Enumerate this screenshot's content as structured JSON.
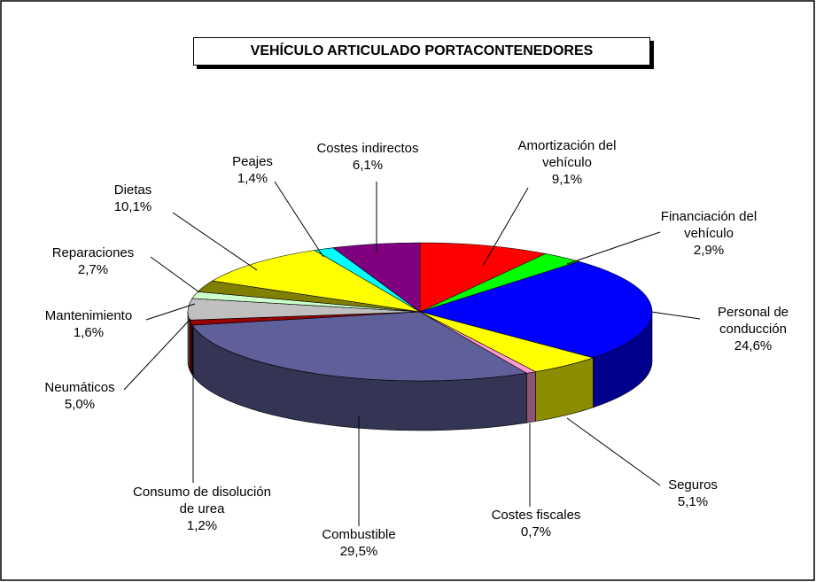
{
  "chart_data": {
    "type": "pie",
    "title": "VEHÍCULO ARTICULADO PORTACONTENEDORES",
    "categories": [
      "Amortización del vehículo",
      "Financiación del vehículo",
      "Personal de conducción",
      "Seguros",
      "Costes fiscales",
      "Combustible",
      "Consumo de disolución de urea",
      "Neumáticos",
      "Mantenimiento",
      "Reparaciones",
      "Dietas",
      "Peajes",
      "Costes indirectos"
    ],
    "values": [
      9.1,
      2.9,
      24.6,
      5.1,
      0.7,
      29.5,
      1.2,
      5.0,
      1.6,
      2.7,
      10.1,
      1.4,
      6.1
    ],
    "value_labels": [
      "9,1%",
      "2,9%",
      "24,6%",
      "5,1%",
      "0,7%",
      "29,5%",
      "1,2%",
      "5,0%",
      "1,6%",
      "2,7%",
      "10,1%",
      "1,4%",
      "6,1%"
    ],
    "colors": [
      "#ff0000",
      "#00ff00",
      "#0000ff",
      "#ffff00",
      "#ff99cc",
      "#5f5f99",
      "#990000",
      "#c0c0c0",
      "#ccffcc",
      "#808000",
      "#ffff00",
      "#00ffff",
      "#800080"
    ]
  }
}
